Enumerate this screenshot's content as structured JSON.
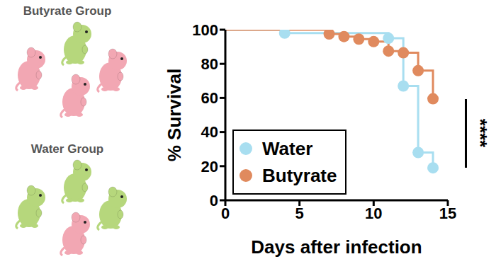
{
  "chart_data": {
    "type": "line",
    "x_label": "Days after infection",
    "y_label": "% Survival",
    "xlim": [
      0,
      15
    ],
    "xticks": [
      0,
      5,
      10,
      15
    ],
    "ylim": [
      0,
      100
    ],
    "yticks": [
      0,
      20,
      40,
      60,
      80,
      100
    ],
    "legend": "lower left",
    "line_style": "step",
    "marker": "circle",
    "annotation": "****",
    "series": [
      {
        "name": "Water",
        "color": "#a8def0",
        "x": [
          0,
          4,
          11,
          12,
          13,
          14
        ],
        "values": [
          100,
          98,
          95,
          67,
          28,
          19
        ]
      },
      {
        "name": "Butyrate",
        "color": "#e08a5e",
        "x": [
          0,
          7,
          8,
          9,
          10,
          11,
          12,
          13,
          14
        ],
        "values": [
          100,
          97.5,
          96,
          94.5,
          93,
          87.5,
          86.5,
          76,
          59.5
        ]
      }
    ]
  },
  "illustration": {
    "groups": [
      "Butyrate Group",
      "Water Group"
    ]
  }
}
